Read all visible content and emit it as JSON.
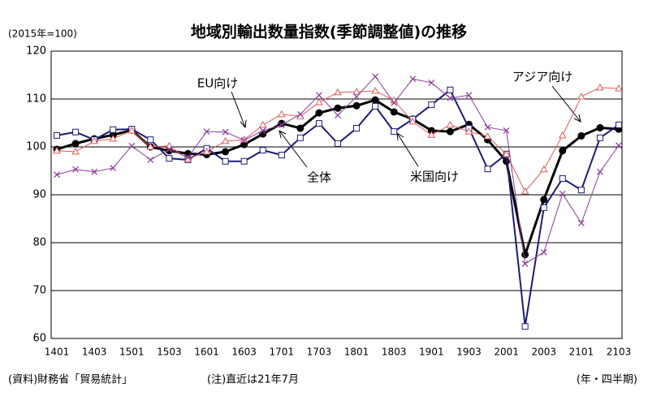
{
  "chart_data": {
    "type": "line",
    "title": "地域別輸出数量指数(季節調整値)の推移",
    "subtitle": "(2015年=100)",
    "source": "(資料)財務省「貿易統計」",
    "note": "(注)直近は21年7月",
    "x_label": "(年・四半期)",
    "categories": [
      "1401",
      null,
      "1403",
      null,
      "1501",
      null,
      "1503",
      null,
      "1601",
      null,
      "1603",
      null,
      "1701",
      null,
      "1703",
      null,
      "1801",
      null,
      "1803",
      null,
      "1901",
      null,
      "1903",
      null,
      "2001",
      null,
      "2003",
      null,
      "2101",
      null,
      "2103"
    ],
    "ylim": [
      60,
      120
    ],
    "yticks": [
      60,
      70,
      80,
      90,
      100,
      110,
      120
    ],
    "grid": true,
    "series": [
      {
        "name": "全体",
        "color": "#000000",
        "marker": "circle",
        "values": [
          99.5,
          100.7,
          101.7,
          102.5,
          103.5,
          100,
          99.2,
          98.6,
          98.4,
          99,
          100.5,
          102.7,
          104.9,
          103.9,
          107.1,
          108.1,
          108.6,
          109.8,
          107.3,
          105.8,
          103.4,
          103.2,
          104.7,
          101.5,
          97,
          77.5,
          89,
          99.2,
          102.3,
          104,
          103.7
        ]
      },
      {
        "name": "米国向け",
        "color": "#1c1c78",
        "marker": "square",
        "values": [
          102.4,
          103.1,
          101.5,
          103.6,
          103.7,
          101.5,
          97.6,
          97.3,
          99.7,
          97,
          97,
          99.3,
          98.3,
          101.9,
          104.9,
          100.7,
          103.9,
          108.5,
          103.2,
          105.8,
          108.8,
          111.9,
          103.9,
          95.4,
          98.5,
          62.5,
          87.3,
          93.4,
          91,
          101.9,
          104.6
        ]
      },
      {
        "name": "アジア向け",
        "color": "#e05a5a",
        "marker": "triangle",
        "values": [
          99.2,
          99,
          101.2,
          101.7,
          103.4,
          100,
          100.2,
          97.5,
          99,
          101.2,
          101.5,
          104.6,
          106.8,
          106.4,
          109.3,
          111.4,
          111.5,
          111.7,
          109.7,
          105.3,
          102.5,
          104.6,
          103.2,
          102.2,
          98.5,
          90.7,
          95.3,
          102.4,
          110.5,
          112.4,
          112.2
        ]
      },
      {
        "name": "EU向け",
        "color": "#8b3a9b",
        "marker": "x",
        "values": [
          94.2,
          95.3,
          94.8,
          95.6,
          100.2,
          97.3,
          99.5,
          97.8,
          103.2,
          103.1,
          101.4,
          103.4,
          104.6,
          106.8,
          110.8,
          106.6,
          110.5,
          114.7,
          109.2,
          114.2,
          113.4,
          110.2,
          110.8,
          104.1,
          103.4,
          75.6,
          78,
          90.2,
          84.1,
          94.8,
          100.3
        ]
      }
    ]
  }
}
